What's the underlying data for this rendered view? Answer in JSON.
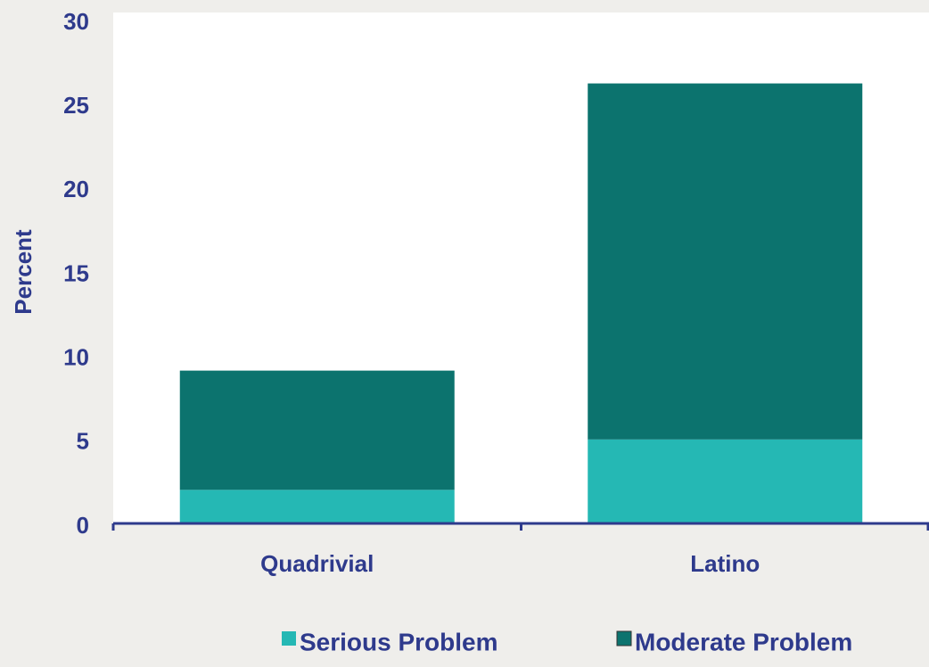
{
  "chart_data": {
    "type": "stacked_bar",
    "categories": [
      "Quadrivial",
      "Latino"
    ],
    "series": [
      {
        "name": "Serious Problem",
        "color": "#25b8b4",
        "values": [
          2,
          5
        ]
      },
      {
        "name": "Moderate Problem",
        "color": "#0c736e",
        "values": [
          7.1,
          21.2
        ]
      }
    ],
    "y_label": "Percent",
    "ylim": [
      0,
      30
    ],
    "yticks": [
      0,
      5,
      10,
      15,
      20,
      25,
      30
    ],
    "legend": "bottom",
    "grid": false
  }
}
